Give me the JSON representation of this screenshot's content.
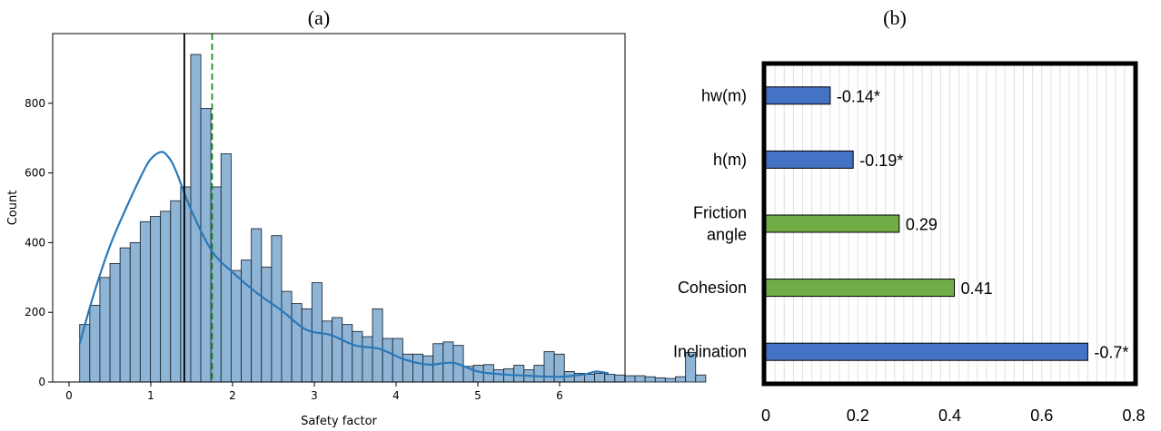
{
  "panel_a": {
    "label": "(a)",
    "colors": {
      "bar_fill": "#8fb5d6",
      "bar_edge": "#1f2a36",
      "kde": "#2a78b8",
      "mean_line": "#000000",
      "dashed_line": "#228b22"
    }
  },
  "panel_b": {
    "label": "(b)",
    "colors": {
      "negative": "#4472c4",
      "positive": "#70ad47",
      "frame": "#000000",
      "grid": "#e0e0e0"
    }
  },
  "chart_data": [
    {
      "type": "bar",
      "subtype": "histogram",
      "title": "",
      "xlabel": "Safety factor",
      "ylabel": "Count",
      "xlim": [
        -0.2,
        6.8
      ],
      "ylim": [
        0,
        1000
      ],
      "xticks": [
        "0",
        "1",
        "2",
        "3",
        "4",
        "5",
        "6"
      ],
      "yticks": [
        "0",
        "200",
        "400",
        "600",
        "800"
      ],
      "bin_start": 0.13,
      "bin_width": 0.1235,
      "values": [
        165,
        220,
        300,
        340,
        385,
        400,
        460,
        475,
        490,
        520,
        560,
        940,
        785,
        560,
        655,
        320,
        350,
        440,
        330,
        420,
        260,
        225,
        210,
        285,
        175,
        185,
        165,
        145,
        130,
        210,
        125,
        125,
        80,
        80,
        75,
        110,
        115,
        105,
        45,
        48,
        50,
        35,
        38,
        48,
        35,
        48,
        87,
        80,
        30,
        25,
        22,
        25,
        22,
        20,
        18,
        18,
        15,
        12,
        10,
        15,
        85,
        20
      ],
      "kde": {
        "x": [
          0.13,
          0.3,
          0.5,
          0.7,
          0.9,
          1.0,
          1.12,
          1.2,
          1.3,
          1.5,
          1.75,
          2.0,
          2.3,
          2.6,
          2.9,
          3.2,
          3.5,
          3.8,
          4.1,
          4.4,
          4.7,
          5.0,
          5.3,
          5.6,
          6.0,
          6.3,
          6.45,
          6.6
        ],
        "y": [
          110,
          250,
          390,
          500,
          600,
          640,
          660,
          650,
          610,
          490,
          375,
          315,
          255,
          205,
          150,
          135,
          105,
          95,
          65,
          50,
          55,
          30,
          22,
          18,
          15,
          22,
          30,
          25
        ]
      },
      "vlines": [
        {
          "x": 1.41,
          "style": "solid"
        },
        {
          "x": 1.75,
          "style": "dashed"
        }
      ],
      "grid": false
    },
    {
      "type": "bar",
      "orientation": "horizontal",
      "title": "",
      "xlim": [
        0,
        0.8
      ],
      "xticks": [
        "0",
        "0.2",
        "0.4",
        "0.6",
        "0.8"
      ],
      "categories": [
        "hw(m)",
        "h(m)",
        "Friction\nangle",
        "Cohesion",
        "Inclination"
      ],
      "values": [
        0.14,
        0.19,
        0.29,
        0.41,
        0.7
      ],
      "labels": [
        "-0.14*",
        "-0.19*",
        "0.29",
        "0.41",
        "-0.7*"
      ],
      "sign": [
        "negative",
        "negative",
        "positive",
        "positive",
        "negative"
      ],
      "grid": true
    }
  ]
}
